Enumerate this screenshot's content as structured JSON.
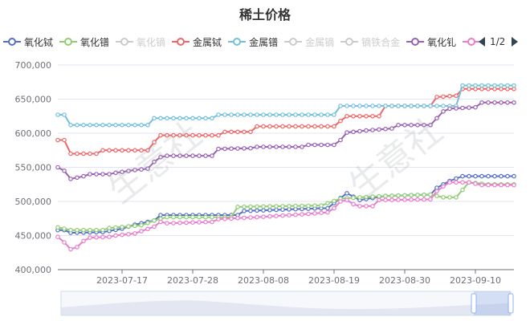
{
  "chart_data": {
    "type": "line",
    "title": "稀土价格",
    "watermark": "生意社",
    "legend_page": "1/2",
    "x_ticks": [
      "2023-07-17",
      "2023-07-28",
      "2023-08-08",
      "2023-08-19",
      "2023-08-30",
      "2023-09-10"
    ],
    "y_ticks": [
      "400,000",
      "450,000",
      "500,000",
      "550,000",
      "600,000",
      "650,000",
      "700,000"
    ],
    "ylim": [
      400000,
      700000
    ],
    "xlim": [
      "2023-07-07",
      "2023-09-16"
    ],
    "grid": true,
    "legend_position": "top",
    "series": [
      {
        "name": "氧化铽",
        "color": "#5470c6",
        "visible": true,
        "points": [
          [
            "2023-07-07",
            458000
          ],
          [
            "2023-07-08",
            458000
          ],
          [
            "2023-07-09",
            454000
          ],
          [
            "2023-07-14",
            455000
          ],
          [
            "2023-07-17",
            460000
          ],
          [
            "2023-07-19",
            466000
          ],
          [
            "2023-07-22",
            472000
          ],
          [
            "2023-07-23",
            480000
          ],
          [
            "2023-08-04",
            480000
          ],
          [
            "2023-08-05",
            486000
          ],
          [
            "2023-08-17",
            490000
          ],
          [
            "2023-08-18",
            490000
          ],
          [
            "2023-08-20",
            505000
          ],
          [
            "2023-08-21",
            512000
          ],
          [
            "2023-08-23",
            502000
          ],
          [
            "2023-08-27",
            508000
          ],
          [
            "2023-09-03",
            510000
          ],
          [
            "2023-09-04",
            520000
          ],
          [
            "2023-09-06",
            530000
          ],
          [
            "2023-09-08",
            537000
          ],
          [
            "2023-09-16",
            537000
          ]
        ]
      },
      {
        "name": "氧化镨",
        "color": "#91cc75",
        "visible": true,
        "points": [
          [
            "2023-07-07",
            462000
          ],
          [
            "2023-07-09",
            458000
          ],
          [
            "2023-07-14",
            458000
          ],
          [
            "2023-07-15",
            461000
          ],
          [
            "2023-07-20",
            465000
          ],
          [
            "2023-07-22",
            472000
          ],
          [
            "2023-07-24",
            477000
          ],
          [
            "2023-08-03",
            477000
          ],
          [
            "2023-08-04",
            492000
          ],
          [
            "2023-08-17",
            494000
          ],
          [
            "2023-08-20",
            504000
          ],
          [
            "2023-08-23",
            506000
          ],
          [
            "2023-08-27",
            508000
          ],
          [
            "2023-09-03",
            510000
          ],
          [
            "2023-09-05",
            506000
          ],
          [
            "2023-09-07",
            506000
          ],
          [
            "2023-09-09",
            528000
          ],
          [
            "2023-09-12",
            525000
          ],
          [
            "2023-09-16",
            525000
          ]
        ]
      },
      {
        "name": "氧化镝",
        "color": "#cccccc",
        "visible": false,
        "points": []
      },
      {
        "name": "金属铽",
        "color": "#ee6666",
        "visible": true,
        "points": [
          [
            "2023-07-07",
            590000
          ],
          [
            "2023-07-08",
            590000
          ],
          [
            "2023-07-09",
            570000
          ],
          [
            "2023-07-13",
            570000
          ],
          [
            "2023-07-14",
            575000
          ],
          [
            "2023-07-21",
            575000
          ],
          [
            "2023-07-22",
            587000
          ],
          [
            "2023-07-23",
            597000
          ],
          [
            "2023-08-01",
            597000
          ],
          [
            "2023-08-02",
            602000
          ],
          [
            "2023-08-06",
            602000
          ],
          [
            "2023-08-07",
            610000
          ],
          [
            "2023-08-19",
            610000
          ],
          [
            "2023-08-20",
            618000
          ],
          [
            "2023-08-21",
            625000
          ],
          [
            "2023-08-26",
            625000
          ],
          [
            "2023-08-27",
            640000
          ],
          [
            "2023-09-03",
            640000
          ],
          [
            "2023-09-04",
            653000
          ],
          [
            "2023-09-07",
            655000
          ],
          [
            "2023-09-08",
            665000
          ],
          [
            "2023-09-16",
            665000
          ]
        ]
      },
      {
        "name": "金属镨",
        "color": "#73c0de",
        "visible": true,
        "points": [
          [
            "2023-07-07",
            627000
          ],
          [
            "2023-07-08",
            627000
          ],
          [
            "2023-07-09",
            612000
          ],
          [
            "2023-07-21",
            612000
          ],
          [
            "2023-07-22",
            622000
          ],
          [
            "2023-07-31",
            622000
          ],
          [
            "2023-08-01",
            627000
          ],
          [
            "2023-08-19",
            627000
          ],
          [
            "2023-08-20",
            640000
          ],
          [
            "2023-09-07",
            640000
          ],
          [
            "2023-09-08",
            670000
          ],
          [
            "2023-09-16",
            670000
          ]
        ]
      },
      {
        "name": "金属镝",
        "color": "#cccccc",
        "visible": false,
        "points": []
      },
      {
        "name": "镝铁合金",
        "color": "#cccccc",
        "visible": false,
        "points": []
      },
      {
        "name": "氧化钆",
        "color": "#9a60b4",
        "visible": true,
        "points": [
          [
            "2023-07-07",
            550000
          ],
          [
            "2023-07-08",
            545000
          ],
          [
            "2023-07-09",
            533000
          ],
          [
            "2023-07-11",
            537000
          ],
          [
            "2023-07-12",
            540000
          ],
          [
            "2023-07-15",
            540000
          ],
          [
            "2023-07-16",
            542000
          ],
          [
            "2023-07-19",
            546000
          ],
          [
            "2023-07-21",
            548000
          ],
          [
            "2023-07-22",
            558000
          ],
          [
            "2023-07-23",
            565000
          ],
          [
            "2023-07-24",
            567000
          ],
          [
            "2023-07-31",
            567000
          ],
          [
            "2023-08-01",
            577000
          ],
          [
            "2023-08-06",
            578000
          ],
          [
            "2023-08-07",
            580000
          ],
          [
            "2023-08-14",
            580000
          ],
          [
            "2023-08-15",
            583000
          ],
          [
            "2023-08-19",
            583000
          ],
          [
            "2023-08-20",
            590000
          ],
          [
            "2023-08-21",
            601000
          ],
          [
            "2023-08-24",
            604000
          ],
          [
            "2023-08-28",
            607000
          ],
          [
            "2023-08-29",
            612000
          ],
          [
            "2023-09-03",
            612000
          ],
          [
            "2023-09-04",
            622000
          ],
          [
            "2023-09-05",
            632000
          ],
          [
            "2023-09-06",
            636000
          ],
          [
            "2023-09-10",
            638000
          ],
          [
            "2023-09-11",
            645000
          ],
          [
            "2023-09-16",
            645000
          ]
        ]
      },
      {
        "name": "",
        "color": "#ea7ccc",
        "visible": true,
        "points": [
          [
            "2023-07-07",
            448000
          ],
          [
            "2023-07-08",
            440000
          ],
          [
            "2023-07-09",
            430000
          ],
          [
            "2023-07-10",
            433000
          ],
          [
            "2023-07-11",
            442000
          ],
          [
            "2023-07-12",
            447000
          ],
          [
            "2023-07-15",
            448000
          ],
          [
            "2023-07-16",
            450000
          ],
          [
            "2023-07-19",
            453000
          ],
          [
            "2023-07-22",
            463000
          ],
          [
            "2023-07-23",
            470000
          ],
          [
            "2023-07-24",
            468000
          ],
          [
            "2023-07-31",
            470000
          ],
          [
            "2023-08-01",
            474000
          ],
          [
            "2023-08-07",
            477000
          ],
          [
            "2023-08-14",
            481000
          ],
          [
            "2023-08-18",
            484000
          ],
          [
            "2023-08-19",
            490000
          ],
          [
            "2023-08-20",
            500000
          ],
          [
            "2023-08-21",
            502000
          ],
          [
            "2023-08-22",
            496000
          ],
          [
            "2023-08-23",
            493000
          ],
          [
            "2023-08-25",
            493000
          ],
          [
            "2023-08-26",
            502000
          ],
          [
            "2023-09-03",
            503000
          ],
          [
            "2023-09-04",
            515000
          ],
          [
            "2023-09-05",
            522000
          ],
          [
            "2023-09-06",
            528000
          ],
          [
            "2023-09-09",
            528000
          ],
          [
            "2023-09-11",
            524000
          ],
          [
            "2023-09-16",
            524000
          ]
        ]
      }
    ]
  }
}
